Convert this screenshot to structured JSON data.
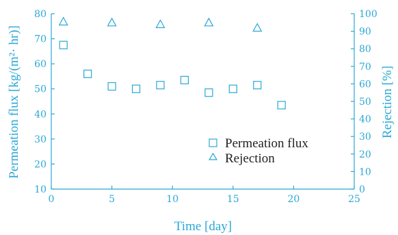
{
  "chart_data": {
    "type": "scatter",
    "xlabel": "Time [day]",
    "ylabel_left": "Permeation flux [kg/(m²· hr)]",
    "ylabel_right": "Rejection [%]",
    "xlim": [
      0,
      25
    ],
    "ylim_left": [
      10,
      80
    ],
    "ylim_right": [
      0,
      100
    ],
    "x_ticks": [
      0,
      5,
      10,
      15,
      20,
      25
    ],
    "y_left_ticks": [
      10,
      20,
      30,
      40,
      50,
      60,
      70,
      80
    ],
    "y_right_ticks": [
      0,
      10,
      20,
      30,
      40,
      50,
      60,
      70,
      80,
      90,
      100
    ],
    "grid": false,
    "legend_position": "bottom-right",
    "color": "#29a8d6",
    "series": [
      {
        "name": "Permeation flux",
        "axis": "left",
        "marker": "square",
        "x": [
          1,
          3,
          5,
          7,
          9,
          11,
          13,
          15,
          17,
          19
        ],
        "y": [
          67.5,
          56,
          51,
          50,
          51.5,
          53.5,
          48.5,
          50,
          51.5,
          43.5
        ]
      },
      {
        "name": "Rejection",
        "axis": "right",
        "marker": "triangle",
        "x": [
          1,
          5,
          9,
          13,
          17
        ],
        "y": [
          95.5,
          95,
          94,
          95,
          92
        ]
      }
    ]
  }
}
